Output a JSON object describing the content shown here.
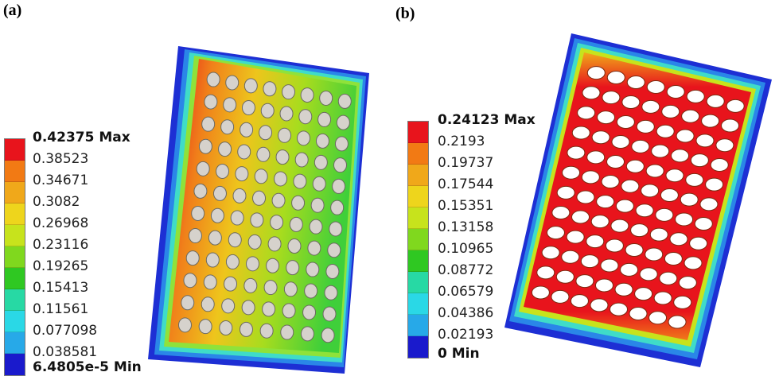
{
  "panels": {
    "a": {
      "label": "(a)"
    },
    "b": {
      "label": "(b)"
    }
  },
  "legend_a": {
    "max_label": "0.42375 Max",
    "min_label": "6.4805e-5 Min",
    "values": [
      "0.42375 Max",
      "0.38523",
      "0.34671",
      "0.3082",
      "0.26968",
      "0.23116",
      "0.19265",
      "0.15413",
      "0.11561",
      "0.077098",
      "0.038581",
      "6.4805e-5 Min"
    ]
  },
  "legend_b": {
    "values": [
      "0.24123 Max",
      "0.2193",
      "0.19737",
      "0.17544",
      "0.15351",
      "0.13158",
      "0.10965",
      "0.08772",
      "0.06579",
      "0.04386",
      "0.02193",
      "0 Min"
    ]
  },
  "colors": [
    "#e8141c",
    "#f27a14",
    "#f0a81a",
    "#eed51c",
    "#c7e31c",
    "#80d81e",
    "#2fc822",
    "#27d9a4",
    "#2ad8e6",
    "#27a9e8",
    "#2a63e1",
    "#1a1acc"
  ]
}
